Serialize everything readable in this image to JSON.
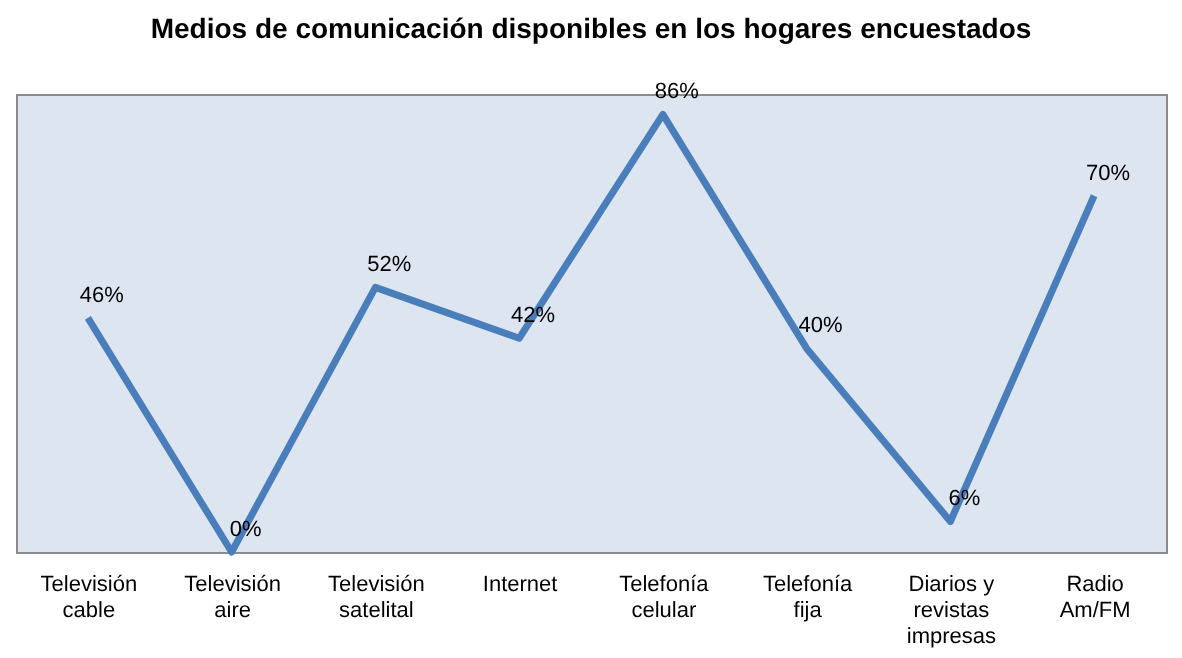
{
  "chart_data": {
    "type": "line",
    "title": "Medios de comunicación disponibles en los hogares encuestados",
    "categories": [
      "Televisión\ncable",
      "Televisión\naire",
      "Televisión\nsatelital",
      "Internet",
      "Telefonía\ncelular",
      "Telefonía\nfija",
      "Diarios y\nrevistas\nimpresas",
      "Radio\nAm/FM"
    ],
    "series": [
      {
        "color": "#4a7ebb",
        "values": [
          46,
          0,
          52,
          42,
          86,
          40,
          6,
          70
        ],
        "value_labels": [
          "46%",
          "0%",
          "52%",
          "42%",
          "86%",
          "40%",
          "6%",
          "70%"
        ]
      }
    ],
    "grid": false,
    "marker": "none",
    "line_style": "solid"
  }
}
